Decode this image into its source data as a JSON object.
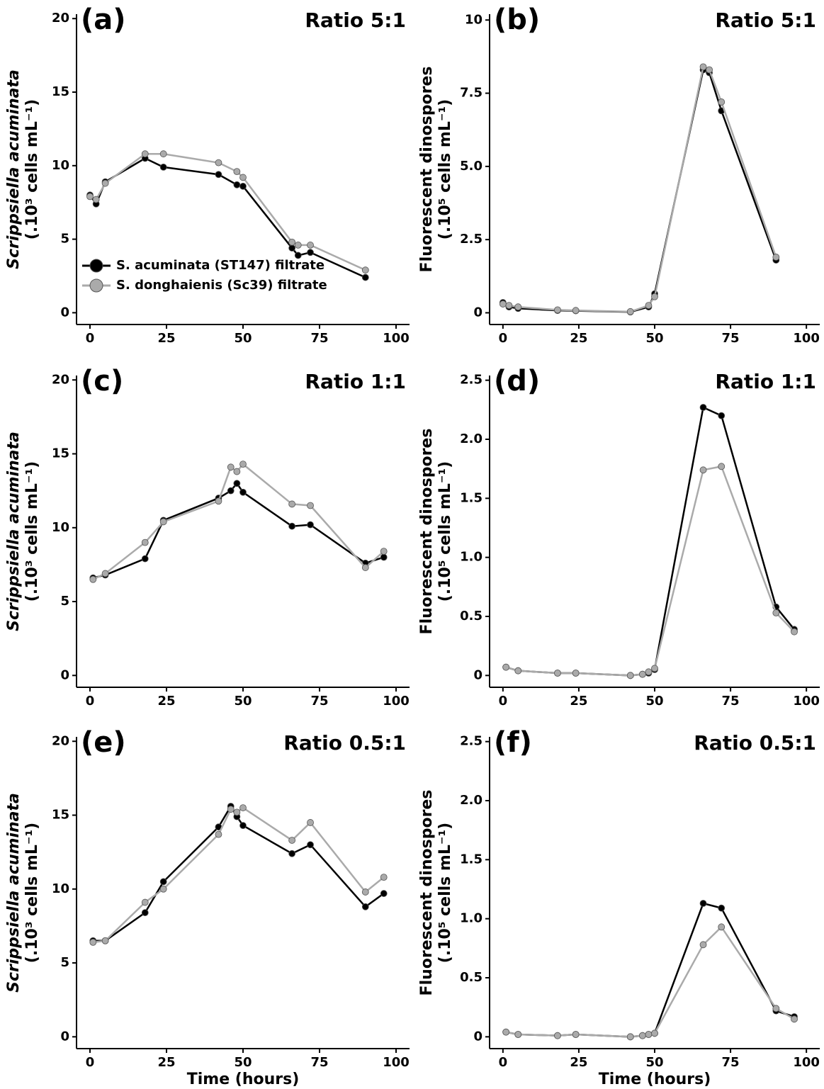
{
  "chart_data": [
    {
      "type": "line",
      "panel_label": "(a)",
      "title": "Ratio 5:1",
      "ylabel": [
        "Scrippsiella acuminata",
        "(.10³ cells mL⁻¹)"
      ],
      "ylabel_italic": true,
      "x": [
        0,
        2,
        5,
        18,
        24,
        42,
        48,
        50,
        66,
        68,
        72,
        90
      ],
      "series": [
        {
          "name": "S. acuminata (ST147) filtrate",
          "color": "#000000",
          "values": [
            8.0,
            7.4,
            8.9,
            10.5,
            9.9,
            9.4,
            8.7,
            8.6,
            4.4,
            3.9,
            4.1,
            2.4
          ]
        },
        {
          "name": "S. donghaienis (Sc39) filtrate",
          "color": "#aaaaaa",
          "values": [
            7.9,
            7.7,
            8.8,
            10.8,
            10.8,
            10.2,
            9.6,
            9.2,
            4.8,
            4.6,
            4.6,
            2.9
          ]
        }
      ],
      "xlim": [
        -4.4,
        104.4
      ],
      "ylim": [
        -0.8,
        20.3
      ],
      "xticks": [
        0,
        25,
        50,
        75,
        100
      ],
      "yticks": [
        0,
        5,
        10,
        15,
        20
      ],
      "legend": "lower left"
    },
    {
      "type": "line",
      "panel_label": "(b)",
      "title": "Ratio 5:1",
      "ylabel": [
        "Fluorescent dinospores",
        "(.10⁵ cells mL⁻¹)"
      ],
      "ylabel_italic": false,
      "x": [
        0,
        2,
        5,
        18,
        24,
        42,
        48,
        50,
        66,
        68,
        72,
        90
      ],
      "series": [
        {
          "color": "#000000",
          "values": [
            0.35,
            0.2,
            0.15,
            0.08,
            0.07,
            0.03,
            0.2,
            0.65,
            8.3,
            8.2,
            6.9,
            1.8
          ]
        },
        {
          "color": "#aaaaaa",
          "values": [
            0.3,
            0.25,
            0.2,
            0.1,
            0.08,
            0.04,
            0.25,
            0.55,
            8.4,
            8.3,
            7.2,
            1.9
          ]
        }
      ],
      "xlim": [
        -4.4,
        104.4
      ],
      "ylim": [
        -0.4,
        10.2
      ],
      "xticks": [
        0,
        25,
        50,
        75,
        100
      ],
      "yticks": [
        0,
        2.5,
        {
          "value": 5,
          "label": "5.0"
        },
        7.5,
        10
      ]
    },
    {
      "type": "line",
      "panel_label": "(c)",
      "title": "Ratio 1:1",
      "ylabel": [
        "Scrippsiella acuminata",
        "(.10³ cells mL⁻¹)"
      ],
      "ylabel_italic": true,
      "x": [
        1,
        5,
        18,
        24,
        42,
        46,
        48,
        50,
        66,
        72,
        90,
        96
      ],
      "series": [
        {
          "color": "#000000",
          "values": [
            6.6,
            6.8,
            7.9,
            10.5,
            12.0,
            12.5,
            13.0,
            12.4,
            10.1,
            10.2,
            7.6,
            8.0
          ]
        },
        {
          "color": "#aaaaaa",
          "values": [
            6.5,
            6.9,
            9.0,
            10.4,
            11.8,
            14.1,
            13.8,
            14.3,
            11.6,
            11.5,
            7.3,
            8.4
          ]
        }
      ],
      "xlim": [
        -4.4,
        104.4
      ],
      "ylim": [
        -0.8,
        20.3
      ],
      "xticks": [
        0,
        25,
        50,
        75,
        100
      ],
      "yticks": [
        0,
        5,
        10,
        15,
        20
      ]
    },
    {
      "type": "line",
      "panel_label": "(d)",
      "title": "Ratio 1:1",
      "ylabel": [
        "Fluorescent dinospores",
        "(.10⁵ cells mL⁻¹)"
      ],
      "ylabel_italic": false,
      "x": [
        1,
        5,
        18,
        24,
        42,
        46,
        48,
        50,
        66,
        72,
        90,
        96
      ],
      "series": [
        {
          "color": "#000000",
          "values": [
            0.07,
            0.04,
            0.02,
            0.02,
            0.0,
            0.01,
            0.02,
            0.05,
            2.27,
            2.2,
            0.58,
            0.39
          ]
        },
        {
          "color": "#aaaaaa",
          "values": [
            0.07,
            0.04,
            0.02,
            0.02,
            0.0,
            0.01,
            0.03,
            0.06,
            1.74,
            1.77,
            0.53,
            0.37
          ]
        }
      ],
      "xlim": [
        -4.4,
        104.4
      ],
      "ylim": [
        -0.1,
        2.54
      ],
      "xticks": [
        0,
        25,
        50,
        75,
        100
      ],
      "yticks": [
        0,
        0.5,
        {
          "value": 1,
          "label": "1.0"
        },
        1.5,
        {
          "value": 2,
          "label": "2.0"
        },
        2.5
      ]
    },
    {
      "type": "line",
      "panel_label": "(e)",
      "title": "Ratio 0.5:1",
      "ylabel": [
        "Scrippsiella acuminata",
        "(.10³ cells mL⁻¹)"
      ],
      "ylabel_italic": true,
      "xlabel": "Time (hours)",
      "x": [
        1,
        5,
        18,
        24,
        42,
        46,
        48,
        50,
        66,
        72,
        90,
        96
      ],
      "series": [
        {
          "color": "#000000",
          "values": [
            6.5,
            6.5,
            8.4,
            10.5,
            14.2,
            15.6,
            14.9,
            14.3,
            12.4,
            13.0,
            8.8,
            9.7
          ]
        },
        {
          "color": "#aaaaaa",
          "values": [
            6.4,
            6.5,
            9.1,
            10.0,
            13.7,
            15.4,
            15.2,
            15.5,
            13.3,
            14.5,
            9.8,
            10.8
          ]
        }
      ],
      "xlim": [
        -4.4,
        104.4
      ],
      "ylim": [
        -0.8,
        20.3
      ],
      "xticks": [
        0,
        25,
        50,
        75,
        100
      ],
      "yticks": [
        0,
        5,
        10,
        15,
        20
      ]
    },
    {
      "type": "line",
      "panel_label": "(f)",
      "title": "Ratio 0.5:1",
      "ylabel": [
        "Fluorescent dinospores",
        "(.10⁵ cells mL⁻¹)"
      ],
      "ylabel_italic": false,
      "xlabel": "Time (hours)",
      "x": [
        1,
        5,
        18,
        24,
        42,
        46,
        48,
        50,
        66,
        72,
        90,
        96
      ],
      "series": [
        {
          "color": "#000000",
          "values": [
            0.04,
            0.02,
            0.01,
            0.02,
            0.0,
            0.01,
            0.02,
            0.03,
            1.13,
            1.09,
            0.22,
            0.17
          ]
        },
        {
          "color": "#aaaaaa",
          "values": [
            0.04,
            0.02,
            0.01,
            0.02,
            0.0,
            0.01,
            0.02,
            0.03,
            0.78,
            0.93,
            0.24,
            0.15
          ]
        }
      ],
      "xlim": [
        -4.4,
        104.4
      ],
      "ylim": [
        -0.1,
        2.54
      ],
      "xticks": [
        0,
        25,
        50,
        75,
        100
      ],
      "yticks": [
        0,
        0.5,
        {
          "value": 1,
          "label": "1.0"
        },
        1.5,
        {
          "value": 2,
          "label": "2.0"
        },
        2.5
      ]
    }
  ]
}
